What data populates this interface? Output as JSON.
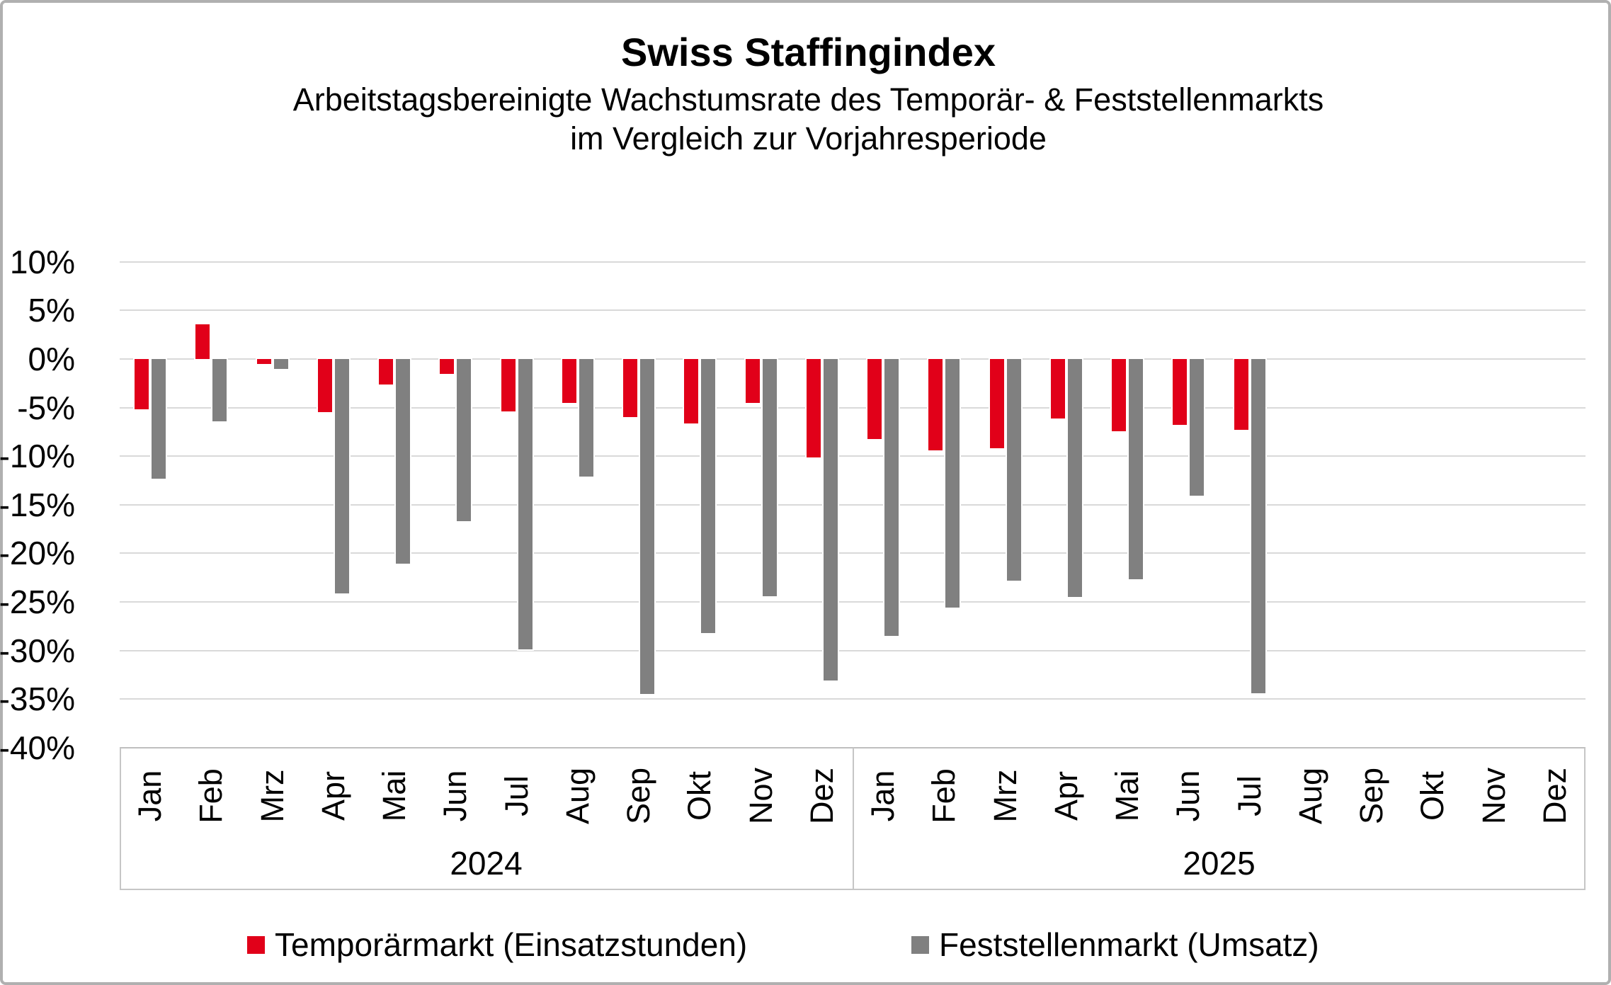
{
  "title": "Swiss Staffingindex",
  "subtitle_line1": "Arbeitstagsbereinigte Wachstumsrate des Temporär- & Feststellenmarkts",
  "subtitle_line2": "im Vergleich zur Vorjahresperiode",
  "colors": {
    "temporaermarkt_red": "#e10019",
    "feststellenmarkt_gray": "#808080",
    "gridline": "#d9d9d9",
    "axis_line": "#bfbfbf",
    "category_box_line": "#c6c6c6",
    "text": "#000000"
  },
  "chart_data": {
    "type": "bar",
    "title": "Swiss Staffingindex",
    "subtitle": "Arbeitstagsbereinigte Wachstumsrate des Temporär- & Feststellenmarkts im Vergleich zur Vorjahresperiode",
    "ylabel": "",
    "xlabel": "",
    "ylim": [
      -40,
      10
    ],
    "ytick_step": 5,
    "ytick_labels": [
      "10%",
      "5%",
      "0%",
      "-5%",
      "-10%",
      "-15%",
      "-20%",
      "-25%",
      "-30%",
      "-35%",
      "-40%"
    ],
    "grid": true,
    "legend_position": "bottom",
    "categories": [
      "Jan",
      "Feb",
      "Mrz",
      "Apr",
      "Mai",
      "Jun",
      "Jul",
      "Aug",
      "Sep",
      "Okt",
      "Nov",
      "Dez",
      "Jan",
      "Feb",
      "Mrz",
      "Apr",
      "Mai",
      "Jun",
      "Jul",
      "Aug",
      "Sep",
      "Okt",
      "Nov",
      "Dez"
    ],
    "year_groups": [
      {
        "label": "2024",
        "months": 12
      },
      {
        "label": "2025",
        "months": 12
      }
    ],
    "series": [
      {
        "name": "Temporärmarkt (Einsatzstunden)",
        "color": "#e10019",
        "values": [
          -5.2,
          3.6,
          -0.5,
          -5.5,
          -2.6,
          -1.5,
          -5.4,
          -4.5,
          -6.0,
          -6.6,
          -4.5,
          -10.1,
          -8.2,
          -9.4,
          -9.2,
          -6.1,
          -7.4,
          -6.8,
          -7.3,
          null,
          null,
          null,
          null,
          null
        ]
      },
      {
        "name": "Feststellenmarkt (Umsatz)",
        "color": "#808080",
        "values": [
          -12.3,
          -6.4,
          -1.0,
          -24.1,
          -21.1,
          -16.7,
          -29.9,
          -12.1,
          -34.5,
          -28.2,
          -24.4,
          -33.1,
          -28.5,
          -25.6,
          -22.8,
          -24.5,
          -22.7,
          -14.1,
          -34.4,
          null,
          null,
          null,
          null,
          null
        ]
      }
    ]
  }
}
